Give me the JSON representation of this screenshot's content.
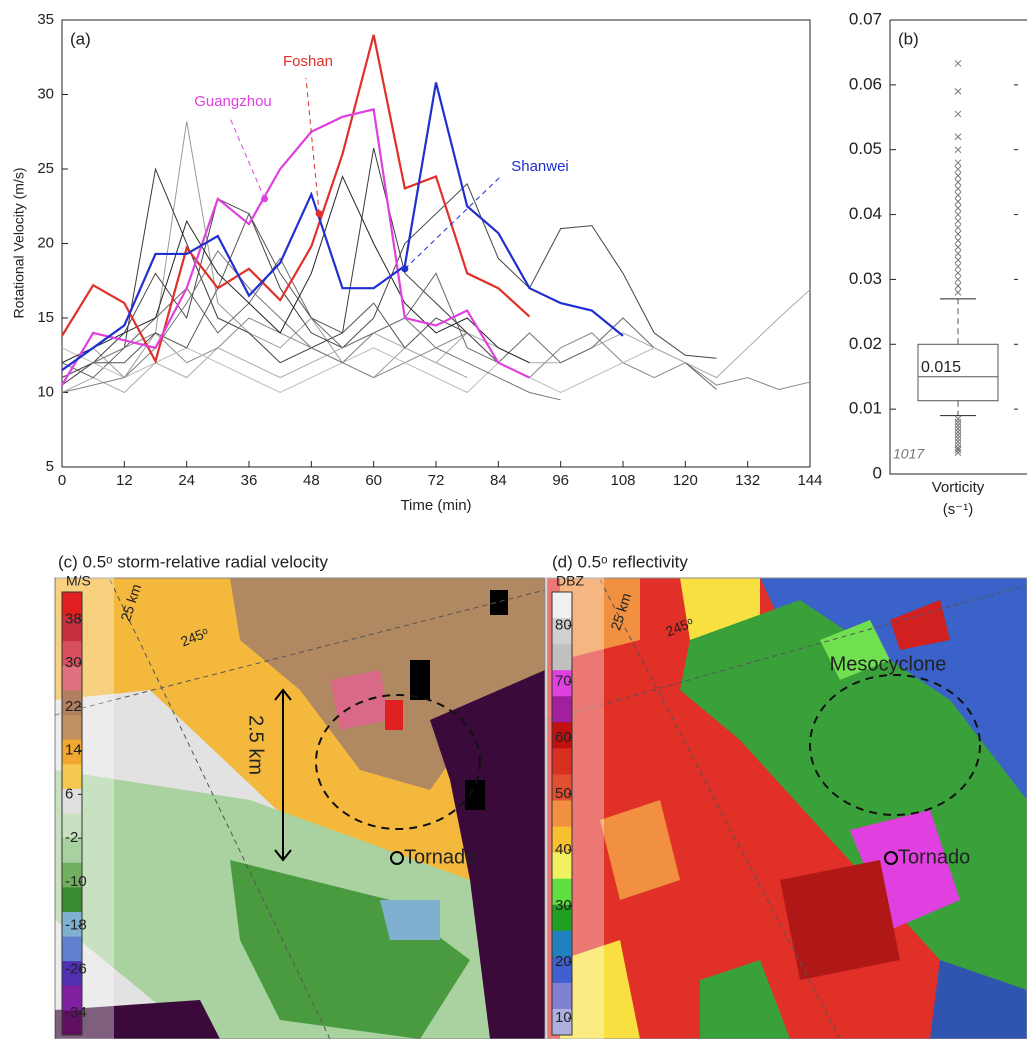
{
  "chart_data": [
    {
      "type": "line",
      "panel_label": "(a)",
      "xlabel": "Time (min)",
      "ylabel": "Rotational Velocity (m/s)",
      "x": [
        0,
        6,
        12,
        18,
        24,
        30,
        36,
        42,
        48,
        54,
        60,
        66,
        72,
        78,
        84,
        90,
        96,
        102,
        108,
        114,
        120,
        126,
        132,
        138,
        144
      ],
      "xlim": [
        0,
        144
      ],
      "xticks": [
        0,
        12,
        24,
        36,
        48,
        60,
        72,
        84,
        96,
        108,
        120,
        132,
        144
      ],
      "ylim": [
        5,
        35
      ],
      "yticks": [
        5,
        10,
        15,
        20,
        25,
        30,
        35
      ],
      "series": [
        {
          "color": "#9a9a9a",
          "values": [
            12,
            13,
            11,
            14,
            28.2,
            16,
            14,
            13,
            15,
            12,
            11,
            13,
            12,
            11,
            null,
            null,
            null,
            null,
            null,
            null,
            null,
            null,
            null,
            null,
            null
          ]
        },
        {
          "color": "#3a3a3a",
          "values": [
            11,
            12,
            13,
            25,
            20,
            15,
            14,
            12,
            13,
            14,
            26.4,
            18,
            16,
            14,
            12,
            null,
            null,
            null,
            null,
            null,
            null,
            null,
            null,
            null,
            null
          ]
        },
        {
          "color": "#444444",
          "values": [
            10.5,
            12,
            14,
            18,
            15,
            23,
            22,
            17,
            14,
            13,
            15,
            20,
            22,
            24,
            19,
            17,
            21,
            21.2,
            18,
            14,
            12.5,
            12.3,
            null,
            null,
            null
          ]
        },
        {
          "color": "#aaaaaa",
          "values": [
            10,
            11,
            10,
            12,
            11,
            13,
            12,
            11,
            12,
            13,
            14,
            13,
            12,
            14,
            13,
            12,
            12,
            13,
            14,
            13,
            12,
            11,
            13,
            15,
            16.9
          ]
        },
        {
          "color": "#888888",
          "values": [
            11,
            12,
            13,
            14,
            12,
            13,
            15,
            14,
            13,
            12,
            11,
            12,
            13,
            14,
            12,
            11,
            13,
            14,
            12,
            11,
            12,
            10.5,
            11,
            10.2,
            10.7
          ]
        },
        {
          "color": "#666666",
          "values": [
            12,
            11,
            13,
            15,
            17,
            14,
            16,
            19,
            15,
            13,
            14,
            15,
            18,
            13,
            12,
            14,
            12,
            13,
            15,
            13,
            12,
            10.2,
            null,
            null,
            null
          ]
        },
        {
          "color": "#bbbbbb",
          "values": [
            13,
            12,
            11,
            12,
            13,
            12,
            11,
            10,
            11,
            12,
            13,
            12,
            11,
            10,
            12,
            11,
            10,
            11,
            12,
            13,
            12,
            null,
            null,
            null,
            null
          ]
        },
        {
          "color": "#555555",
          "values": [
            11,
            12,
            12,
            14,
            13,
            17,
            22,
            18,
            15,
            14,
            16,
            13,
            15,
            14,
            12,
            11,
            null,
            null,
            null,
            null,
            null,
            null,
            null,
            null,
            null
          ]
        },
        {
          "color": "#777777",
          "values": [
            10,
            10.5,
            11,
            13,
            16,
            19.5,
            17,
            15,
            13,
            12,
            14,
            15,
            13,
            12,
            11,
            10,
            9.5,
            null,
            null,
            null,
            null,
            null,
            null,
            null,
            null
          ]
        },
        {
          "color": "#222222",
          "values": [
            12,
            13,
            14,
            15,
            21.5,
            18,
            16,
            14,
            18,
            24.5,
            20,
            16,
            14,
            15,
            13,
            12,
            null,
            null,
            null,
            null,
            null,
            null,
            null,
            null,
            null
          ]
        },
        {
          "name": "Foshan",
          "color": "#e0302a",
          "values": [
            13.8,
            17.2,
            16,
            12.1,
            19.7,
            17,
            18.3,
            16.2,
            19.8,
            26,
            34,
            23.7,
            24.5,
            18,
            17,
            15.1,
            null,
            null,
            null,
            null,
            null,
            null,
            null,
            null,
            null
          ]
        },
        {
          "name": "Guangzhou",
          "color": "#e040e0",
          "values": [
            10.5,
            14,
            13.5,
            13,
            17,
            23,
            21.3,
            25,
            27.5,
            28.5,
            29,
            15,
            14.5,
            15.5,
            12,
            11,
            null,
            null,
            null,
            null,
            null,
            null,
            null,
            null,
            null
          ]
        },
        {
          "name": "Shanwei",
          "color": "#1f2fd0",
          "values": [
            11.5,
            13,
            14.5,
            19.3,
            19.3,
            20.5,
            16.5,
            18.7,
            23.3,
            17,
            17,
            18.5,
            30.8,
            22.5,
            20.7,
            17,
            16,
            15.5,
            13.8,
            null,
            null,
            null,
            null,
            null,
            null
          ]
        }
      ]
    },
    {
      "type": "box",
      "panel_label": "(b)",
      "categories": [
        "Vorticity"
      ],
      "unit": "(s⁻¹)",
      "annotation": "1017",
      "ylim": [
        0,
        0.07
      ],
      "yticks": [
        0,
        0.01,
        0.02,
        0.03,
        0.04,
        0.05,
        0.06,
        0.07
      ],
      "whisker_low": 0.009,
      "q1": 0.0113,
      "median": 0.015,
      "q3": 0.02,
      "whisker_high": 0.027,
      "outliers": [
        0.0033,
        0.0037,
        0.004,
        0.0045,
        0.005,
        0.0055,
        0.006,
        0.0065,
        0.007,
        0.0075,
        0.008,
        0.0085,
        0.028,
        0.029,
        0.03,
        0.031,
        0.032,
        0.033,
        0.034,
        0.035,
        0.036,
        0.037,
        0.038,
        0.039,
        0.04,
        0.041,
        0.042,
        0.043,
        0.044,
        0.045,
        0.046,
        0.047,
        0.048,
        0.05,
        0.052,
        0.0555,
        0.059,
        0.0633
      ],
      "color": "#555555"
    }
  ],
  "radar_panels": [
    {
      "title": "(c) 0.5ᵒ storm-relative radial velocity",
      "colorbar_unit": "M/S",
      "colorbar_lim": [
        -38,
        43
      ],
      "colorbar_ticks": [
        38,
        30,
        22,
        14,
        6,
        -2,
        -10,
        -18,
        -26,
        -34
      ],
      "colorbar_colors": [
        "#e02020",
        "#c83040",
        "#d85060",
        "#e07080",
        "#b08060",
        "#c09060",
        "#f0a830",
        "#f5c850",
        "#e0e0e0",
        "#c8e0c0",
        "#a8d0a0",
        "#70b060",
        "#3a8a30",
        "#80b0d0",
        "#6080d0",
        "#5030b0",
        "#8020a0",
        "#601060"
      ],
      "range_label": "25 km",
      "azimuth_label": "245ᵒ",
      "scale_label": "2.5 km",
      "tornado_label": "Tornado"
    },
    {
      "title": "(d) 0.5ᵒ reflectivity",
      "colorbar_unit": "DBZ",
      "colorbar_lim": [
        7,
        86
      ],
      "colorbar_ticks": [
        80,
        70,
        60,
        50,
        40,
        30,
        20,
        10
      ],
      "colorbar_colors": [
        "#f0f0f0",
        "#d0d0d0",
        "#c0c0c0",
        "#e040e0",
        "#a020a0",
        "#c01010",
        "#d83020",
        "#e05030",
        "#f09040",
        "#f8c030",
        "#f0f060",
        "#60e040",
        "#20a020",
        "#2080c0",
        "#4060d0",
        "#8080d0",
        "#b0b0e0"
      ],
      "range_label": "25 km",
      "azimuth_label": "245ᵒ",
      "meso_label": "Mesocyclone",
      "tornado_label": "Tornado"
    }
  ]
}
